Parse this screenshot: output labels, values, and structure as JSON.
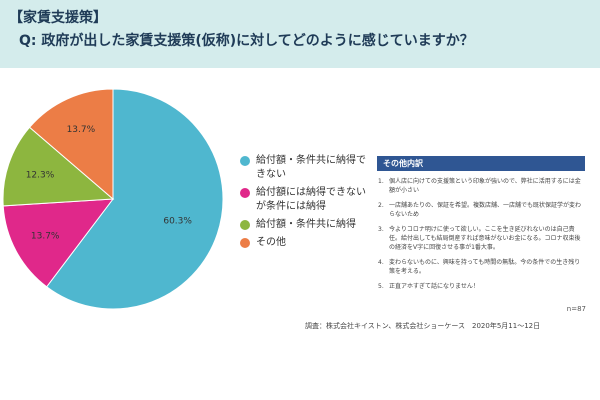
{
  "header": {
    "tag": "【家賃支援策】",
    "question": "Q: 政府が出した家賃支援策(仮称)に対してどのように感じていますか？"
  },
  "chart_data": {
    "type": "pie",
    "title": "",
    "slices": [
      {
        "label": "給付額・条件共に納得できない",
        "value": 60.3,
        "value_label": "60.3%",
        "color": "#4fb7cf"
      },
      {
        "label": "給付額には納得できないが条件には納得",
        "value": 13.7,
        "value_label": "13.7%",
        "color": "#e0288a"
      },
      {
        "label": "給付額・条件共に納得",
        "value": 12.3,
        "value_label": "12.3%",
        "color": "#8db63f"
      },
      {
        "label": "その他",
        "value": 13.7,
        "value_label": "13.7%",
        "color": "#ec7d46"
      }
    ],
    "legend": {
      "placement": "right",
      "items": [
        "給付額・条件共に納得できない",
        "給付額には納得できないが条件には納得",
        "給付額・条件共に納得",
        "その他"
      ]
    }
  },
  "panel": {
    "title": "その他内訳",
    "items": [
      {
        "num": "1.",
        "text": "個人店に向けての支援策という印象が強いので、弊社に活用するには金額が小さい"
      },
      {
        "num": "2.",
        "text": "一店舗あたりの、保証を希望。複数店舗、一店舗でも既状保証学が変わらないため"
      },
      {
        "num": "3.",
        "text": "今よりコロナ明けに使って欲しい。ここを生き延びれないのは自己責任。給付出しても結局倒産すれば意味がないお金になる。コロナ収束後の経済をV字に回復させる事が1番大事。"
      },
      {
        "num": "4.",
        "text": "変わらないものに、興味を持っても時間の無駄。今の条件での生き残り策を考える。"
      },
      {
        "num": "5.",
        "text": "正直アホすぎて話になりません！"
      }
    ]
  },
  "footer": {
    "sample": "n=87",
    "source": "調査：株式会社キイストン、株式会社ショーケース　2020年5月11〜12日"
  }
}
